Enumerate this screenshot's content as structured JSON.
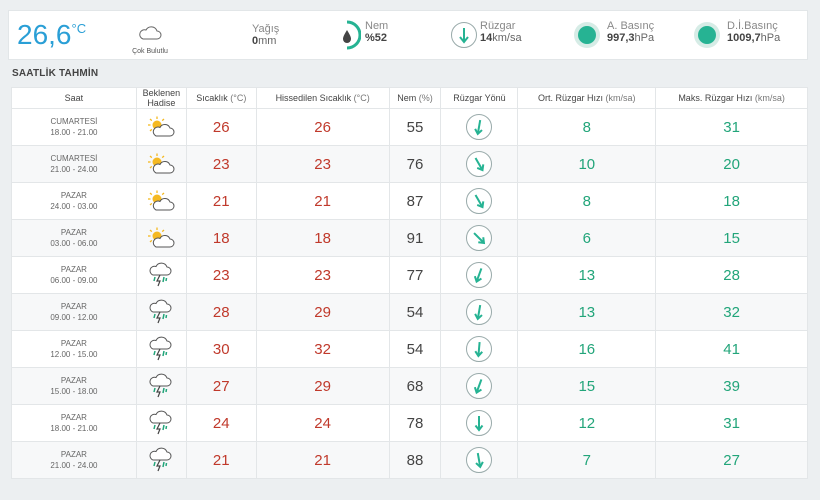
{
  "colors": {
    "accent": "#2a9fd6",
    "teal": "#26b393",
    "red": "#c0392b",
    "green": "#22a57a"
  },
  "current": {
    "temp": "26,6",
    "unit": "°C",
    "condition": "Çok Bulutlu",
    "condition_icon": "cloud-icon",
    "rain": {
      "title": "Yağış",
      "value": "0",
      "unit": "mm"
    },
    "humidity": {
      "title": "Nem",
      "value": "%52"
    },
    "wind": {
      "title": "Rüzgar",
      "value": "14",
      "unit": "km/sa"
    },
    "pressure": {
      "title": "A. Basınç",
      "value": "997,3",
      "unit": "hPa"
    },
    "sea_pressure": {
      "title": "D.İ.Basınç",
      "value": "1009,7",
      "unit": "hPa"
    }
  },
  "section_title": "SAATLİK TAHMİN",
  "headers": {
    "saat": "Saat",
    "hadise1": "Beklenen",
    "hadise2": "Hadise",
    "sicaklik": "Sıcaklık",
    "sicaklik_u": "(°C)",
    "hissedilen": "Hissedilen Sıcaklık",
    "hissedilen_u": "(°C)",
    "nem": "Nem",
    "nem_u": "(%)",
    "yon": "Rüzgar Yönü",
    "ort": "Ort. Rüzgar Hızı",
    "ort_u": "(km/sa)",
    "maks": "Maks. Rüzgar Hızı",
    "maks_u": "(km/sa)"
  },
  "rows": [
    {
      "day": "CUMARTESİ",
      "time": "18.00 - 21.00",
      "icon": "partly-cloudy-icon",
      "temp": "26",
      "feels": "26",
      "hum": "55",
      "dir_deg": 190,
      "avg": "8",
      "max": "31"
    },
    {
      "day": "CUMARTESİ",
      "time": "21.00 - 24.00",
      "icon": "partly-cloudy-icon",
      "temp": "23",
      "feels": "23",
      "hum": "76",
      "dir_deg": 150,
      "avg": "10",
      "max": "20"
    },
    {
      "day": "PAZAR",
      "time": "24.00 - 03.00",
      "icon": "partly-cloudy-icon",
      "temp": "21",
      "feels": "21",
      "hum": "87",
      "dir_deg": 150,
      "avg": "8",
      "max": "18"
    },
    {
      "day": "PAZAR",
      "time": "03.00 - 06.00",
      "icon": "partly-cloudy-icon",
      "temp": "18",
      "feels": "18",
      "hum": "91",
      "dir_deg": 135,
      "avg": "6",
      "max": "15"
    },
    {
      "day": "PAZAR",
      "time": "06.00 - 09.00",
      "icon": "thunderstorm-icon",
      "temp": "23",
      "feels": "23",
      "hum": "77",
      "dir_deg": 200,
      "avg": "13",
      "max": "28"
    },
    {
      "day": "PAZAR",
      "time": "09.00 - 12.00",
      "icon": "thunderstorm-icon",
      "temp": "28",
      "feels": "29",
      "hum": "54",
      "dir_deg": 190,
      "avg": "13",
      "max": "32"
    },
    {
      "day": "PAZAR",
      "time": "12.00 - 15.00",
      "icon": "thunderstorm-icon",
      "temp": "30",
      "feels": "32",
      "hum": "54",
      "dir_deg": 185,
      "avg": "16",
      "max": "41"
    },
    {
      "day": "PAZAR",
      "time": "15.00 - 18.00",
      "icon": "thunderstorm-icon",
      "temp": "27",
      "feels": "29",
      "hum": "68",
      "dir_deg": 200,
      "avg": "15",
      "max": "39"
    },
    {
      "day": "PAZAR",
      "time": "18.00 - 21.00",
      "icon": "thunderstorm-icon",
      "temp": "24",
      "feels": "24",
      "hum": "78",
      "dir_deg": 180,
      "avg": "12",
      "max": "31"
    },
    {
      "day": "PAZAR",
      "time": "21.00 - 24.00",
      "icon": "thunderstorm-icon",
      "temp": "21",
      "feels": "21",
      "hum": "88",
      "dir_deg": 170,
      "avg": "7",
      "max": "27"
    }
  ]
}
